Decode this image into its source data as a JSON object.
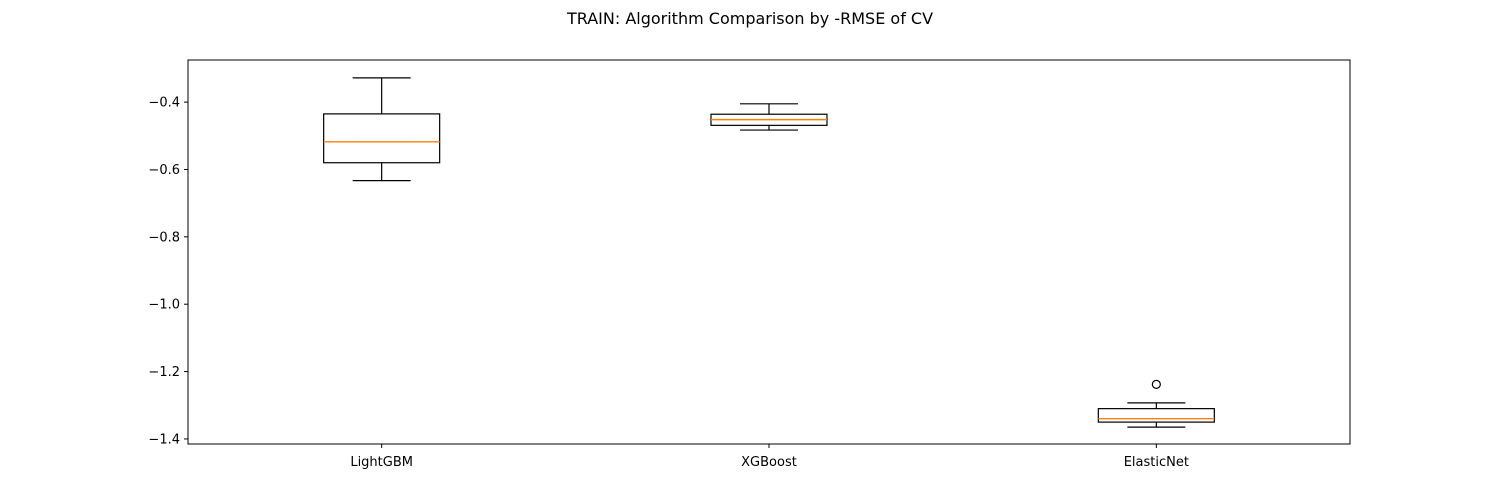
{
  "chart_data": {
    "type": "box",
    "title": "TRAIN: Algorithm Comparison by -RMSE of CV",
    "xlabel": "",
    "ylabel": "",
    "ylim": [
      -1.415,
      -0.275
    ],
    "yticks": [
      -1.4,
      -1.2,
      -1.0,
      -0.8,
      -0.6,
      -0.4
    ],
    "ytick_labels": [
      "−1.4",
      "−1.2",
      "−1.0",
      "−0.8",
      "−0.6",
      "−0.4"
    ],
    "grid": false,
    "categories": [
      "LightGBM",
      "XGBoost",
      "ElasticNet"
    ],
    "boxes": [
      {
        "whisker_low": -0.633,
        "q1": -0.58,
        "median": -0.518,
        "q3": -0.435,
        "whisker_high": -0.328,
        "outliers": []
      },
      {
        "whisker_low": -0.483,
        "q1": -0.469,
        "median": -0.452,
        "q3": -0.436,
        "whisker_high": -0.405,
        "outliers": []
      },
      {
        "whisker_low": -1.365,
        "q1": -1.35,
        "median": -1.34,
        "q3": -1.31,
        "whisker_high": -1.293,
        "outliers": [
          -1.238
        ]
      }
    ],
    "colors": {
      "box": "#000000",
      "median": "#ff7f0e",
      "axes": "#000000"
    }
  }
}
